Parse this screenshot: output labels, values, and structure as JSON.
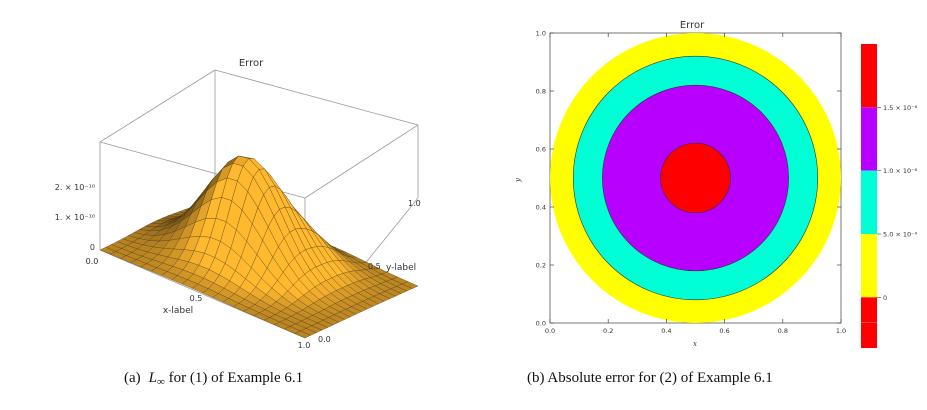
{
  "captions": {
    "left_prefix": "(a)",
    "left_math": "L",
    "left_sub": "∞",
    "left_text": " for (1) of Example 6.1",
    "right": "(b)  Absolute error for (2) of Example 6.1"
  },
  "chart_data": [
    {
      "type": "surface",
      "title": "Error",
      "xlabel": "x-label",
      "ylabel": "y-label",
      "x_ticks": [
        "0.0",
        "0.5",
        "1.0"
      ],
      "y_ticks": [
        "0.0",
        "0.5",
        "1.0"
      ],
      "z_ticks": [
        "0",
        "1. × 10⁻¹⁰",
        "2. × 10⁻¹⁰"
      ],
      "xlim": [
        0,
        1
      ],
      "ylim": [
        0,
        1
      ],
      "z_peak": 2.4e-10,
      "grid_lines": 20,
      "colors": {
        "surface_light": "#f8c23a",
        "surface_dark": "#c9781a",
        "mesh": "#3a2a10",
        "box": "#999999"
      }
    },
    {
      "type": "contour",
      "title": "Error",
      "xlabel": "x",
      "ylabel": "y",
      "x_ticks": [
        "0.0",
        "0.2",
        "0.4",
        "0.6",
        "0.8",
        "1.0"
      ],
      "y_ticks": [
        "0.0",
        "0.2",
        "0.4",
        "0.6",
        "0.8",
        "1.0"
      ],
      "xlim": [
        0,
        1
      ],
      "ylim": [
        0,
        1
      ],
      "center": [
        0.5,
        0.5
      ],
      "rings": [
        {
          "radius": 0.5,
          "color": "#ffff00"
        },
        {
          "radius": 0.42,
          "color": "#00ffd5"
        },
        {
          "radius": 0.32,
          "color": "#b700ff"
        },
        {
          "radius": 0.12,
          "color": "#ff0000"
        }
      ],
      "colorbar": {
        "labels": [
          "1.5 × 10⁻⁸",
          "1.0 × 10⁻⁸",
          "5.0 × 10⁻⁹",
          "0"
        ],
        "label_values": [
          1.5e-08,
          1e-08,
          5e-09,
          0
        ],
        "vmin": -4e-09,
        "vmax": 2e-08,
        "bands": [
          {
            "from": 1.5e-08,
            "to": 2e-08,
            "color": "#ff0000"
          },
          {
            "from": 1e-08,
            "to": 1.5e-08,
            "color": "#b700ff"
          },
          {
            "from": 5e-09,
            "to": 1e-08,
            "color": "#00ffd5"
          },
          {
            "from": 0,
            "to": 5e-09,
            "color": "#ffff00"
          },
          {
            "from": -4e-09,
            "to": 0,
            "color": "#ff0000"
          }
        ]
      }
    }
  ]
}
